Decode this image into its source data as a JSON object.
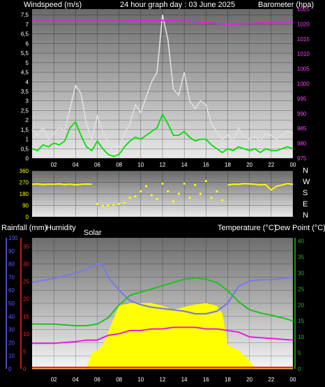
{
  "top": {
    "title": "24 hour graph day : 03 June 2025",
    "left_label": "Windspeed (m/s)",
    "right_label": "Barometer (hpa)",
    "left_ticks": [
      "0",
      "0,5",
      "1",
      "1,5",
      "2",
      "2,5",
      "3",
      "3,5",
      "4",
      "4,5",
      "5",
      "5,5",
      "6",
      "6,5",
      "7",
      "7,5"
    ],
    "right_ticks": [
      "975",
      "980",
      "985",
      "990",
      "995",
      "1000",
      "1005",
      "1010",
      "1015",
      "1020",
      "1025"
    ]
  },
  "dir": {
    "left_ticks": [
      "0",
      "90",
      "180",
      "270",
      "360"
    ],
    "compass": [
      "N",
      "W",
      "S",
      "E",
      "N"
    ]
  },
  "bottom": {
    "rain_label": "Rainfall (mm)",
    "humidity_label": "Humidity",
    "solar_label": "Solar",
    "temp_label": "Temperature (°C)",
    "dew_label": "Dew Point (°C)",
    "humidity_ticks": [
      "0",
      "10",
      "20",
      "30",
      "40",
      "50",
      "60",
      "70",
      "80",
      "90",
      "100"
    ],
    "rain_ticks": [
      "0",
      "5",
      "10",
      "15",
      "20",
      "25",
      "30",
      "35"
    ],
    "temp_ticks": [
      "0",
      "5",
      "10",
      "15",
      "20",
      "25",
      "30",
      "35",
      "40"
    ]
  },
  "x_ticks": [
    "02",
    "04",
    "06",
    "08",
    "10",
    "12",
    "14",
    "16",
    "18",
    "20",
    "22",
    "00"
  ],
  "colors": {
    "gust": "#e0e0e0",
    "wind": "#00e000",
    "pressure": "#e020e0",
    "direction": "#ffff00",
    "humidity": "#7a7ae6",
    "temperature": "#20c020",
    "dewpoint": "#e020e0",
    "solar": "#ffff00",
    "rain": "#ff2020",
    "humidity_axis": "#6060ff",
    "rain_axis": "#ff2020",
    "temp_axis": "#20c020"
  },
  "chart_data": [
    {
      "type": "line",
      "xlim": [
        0,
        24
      ],
      "ylim": [
        0,
        7.8
      ],
      "y2lim": [
        975,
        1025
      ],
      "series": [
        {
          "x": [
            0,
            0.5,
            1,
            1.5,
            2,
            2.5,
            3,
            3.5,
            4,
            4.5,
            5,
            5.5,
            6,
            6.5,
            7,
            7.5,
            8,
            8.5,
            9,
            9.5,
            10,
            10.5,
            11,
            11.5,
            12,
            12.5,
            13,
            13.5,
            14,
            14.5,
            15,
            15.5,
            16,
            16.5,
            17,
            17.5,
            18,
            18.5,
            19,
            19.5,
            20,
            20.5,
            21,
            21.5,
            22,
            22.5,
            23,
            23.5,
            24
          ],
          "values": [
            1.5,
            1.2,
            1.6,
            1.0,
            1.3,
            1.6,
            1.4,
            2.6,
            3.8,
            3.4,
            1.8,
            1.0,
            2.2,
            1.4,
            0.8,
            0.3,
            0.6,
            1.3,
            1.8,
            2.8,
            2.4,
            3.2,
            4.0,
            4.5,
            7.5,
            6.2,
            3.6,
            3.3,
            4.5,
            3.0,
            2.6,
            3.0,
            2.8,
            1.8,
            1.4,
            1.0,
            1.2,
            0.9,
            1.6,
            1.1,
            1.0,
            1.1,
            0.9,
            1.3,
            1.2,
            1.0,
            1.2,
            1.4,
            1.3
          ]
        },
        {
          "x": [
            0,
            0.5,
            1,
            1.5,
            2,
            2.5,
            3,
            3.5,
            4,
            4.5,
            5,
            5.5,
            6,
            6.5,
            7,
            7.5,
            8,
            8.5,
            9,
            9.5,
            10,
            10.5,
            11,
            11.5,
            12,
            12.5,
            13,
            13.5,
            14,
            14.5,
            15,
            15.5,
            16,
            16.5,
            17,
            17.5,
            18,
            18.5,
            19,
            19.5,
            20,
            20.5,
            21,
            21.5,
            22,
            22.5,
            23,
            23.5,
            24
          ],
          "values": [
            0.5,
            0.4,
            0.7,
            0.6,
            0.8,
            0.7,
            0.9,
            1.6,
            1.9,
            1.2,
            0.6,
            0.4,
            0.9,
            0.5,
            0.2,
            0.1,
            0.2,
            0.6,
            0.9,
            1.1,
            1.0,
            1.2,
            1.4,
            1.6,
            2.3,
            1.8,
            1.2,
            1.2,
            1.4,
            1.1,
            0.9,
            1.0,
            1.0,
            0.7,
            0.5,
            0.3,
            0.5,
            0.4,
            0.6,
            0.5,
            0.4,
            0.5,
            0.3,
            0.5,
            0.4,
            0.4,
            0.5,
            0.6,
            0.5
          ]
        },
        {
          "x": [
            0,
            2,
            4,
            6,
            8,
            10,
            12,
            14,
            16,
            18,
            20,
            22,
            24
          ],
          "values": [
            1021,
            1021,
            1021,
            1021,
            1021,
            1021.3,
            1021.2,
            1021,
            1020.5,
            1019.8,
            1020.2,
            1020.5,
            1020.8
          ],
          "axis": "right"
        }
      ]
    },
    {
      "type": "scatter",
      "xlim": [
        0,
        24
      ],
      "ylim": [
        0,
        360
      ],
      "series": [
        {
          "x": [
            0,
            0.5,
            1,
            1.5,
            2,
            2.5,
            3,
            3.5,
            4,
            4.5,
            5,
            5.5,
            6,
            6.5,
            7,
            7.5,
            8,
            8.5,
            9,
            9.5,
            10,
            10.5,
            11,
            11.5,
            12,
            12.5,
            13,
            13.5,
            14,
            14.5,
            15,
            15.5,
            16,
            16.5,
            17,
            17.5,
            18,
            18.5,
            19,
            19.5,
            20,
            20.5,
            21,
            21.5,
            22,
            22.5,
            23,
            23.5,
            24
          ],
          "values": [
            255,
            258,
            252,
            256,
            254,
            258,
            252,
            256,
            250,
            254,
            257,
            255,
            100,
            85,
            90,
            95,
            100,
            110,
            150,
            160,
            200,
            240,
            170,
            140,
            260,
            200,
            120,
            180,
            260,
            150,
            250,
            180,
            280,
            150,
            200,
            130,
            250,
            255,
            255,
            260,
            258,
            254,
            250,
            252,
            210,
            240,
            250,
            260,
            255
          ]
        }
      ]
    },
    {
      "type": "area",
      "xlim": [
        0,
        24
      ],
      "series": [
        {
          "x": [
            0,
            2,
            4,
            5,
            6,
            6.5,
            7,
            8,
            9,
            10,
            11,
            12,
            13,
            14,
            15,
            16,
            17,
            18,
            19,
            20,
            21,
            22,
            24
          ],
          "values": [
            66,
            69,
            73,
            76,
            80,
            79,
            70,
            60,
            52,
            49,
            47,
            46,
            45,
            44,
            42,
            42,
            44,
            50,
            63,
            67,
            68,
            68,
            70
          ]
        },
        {
          "x": [
            0,
            2,
            4,
            5,
            6,
            7,
            8,
            9,
            10,
            11,
            12,
            13,
            14,
            15,
            16,
            17,
            18,
            19,
            20,
            21,
            22,
            23,
            24
          ],
          "values": [
            14,
            14,
            13.5,
            13.5,
            14,
            16,
            20,
            23,
            24,
            25,
            26,
            27,
            28,
            28.5,
            28,
            27,
            24.5,
            21,
            18.5,
            17.5,
            16.8,
            16,
            15
          ]
        },
        {
          "x": [
            0,
            2,
            4,
            5,
            6,
            7,
            8,
            9,
            10,
            11,
            12,
            13,
            14,
            15,
            16,
            17,
            18,
            19,
            20,
            22,
            24
          ],
          "values": [
            8,
            8,
            8.5,
            9,
            9,
            10.5,
            11,
            12,
            12,
            12.5,
            12.5,
            13,
            13,
            13,
            12.5,
            12.5,
            12,
            11.5,
            10,
            9.5,
            9
          ]
        },
        {
          "x": [
            0,
            4,
            5,
            5.5,
            6,
            6.5,
            7,
            8,
            9,
            10,
            11,
            12,
            13,
            14,
            15,
            16,
            17,
            17.5,
            18,
            19,
            20,
            20.5,
            24
          ],
          "values": [
            0,
            0,
            0,
            12,
            14,
            18,
            28,
            48,
            50,
            50,
            50,
            48,
            45,
            47,
            49,
            50,
            48,
            42,
            18,
            14,
            6,
            0,
            0
          ]
        },
        {
          "x": [
            0,
            24
          ],
          "values": [
            0,
            0
          ]
        }
      ]
    }
  ]
}
